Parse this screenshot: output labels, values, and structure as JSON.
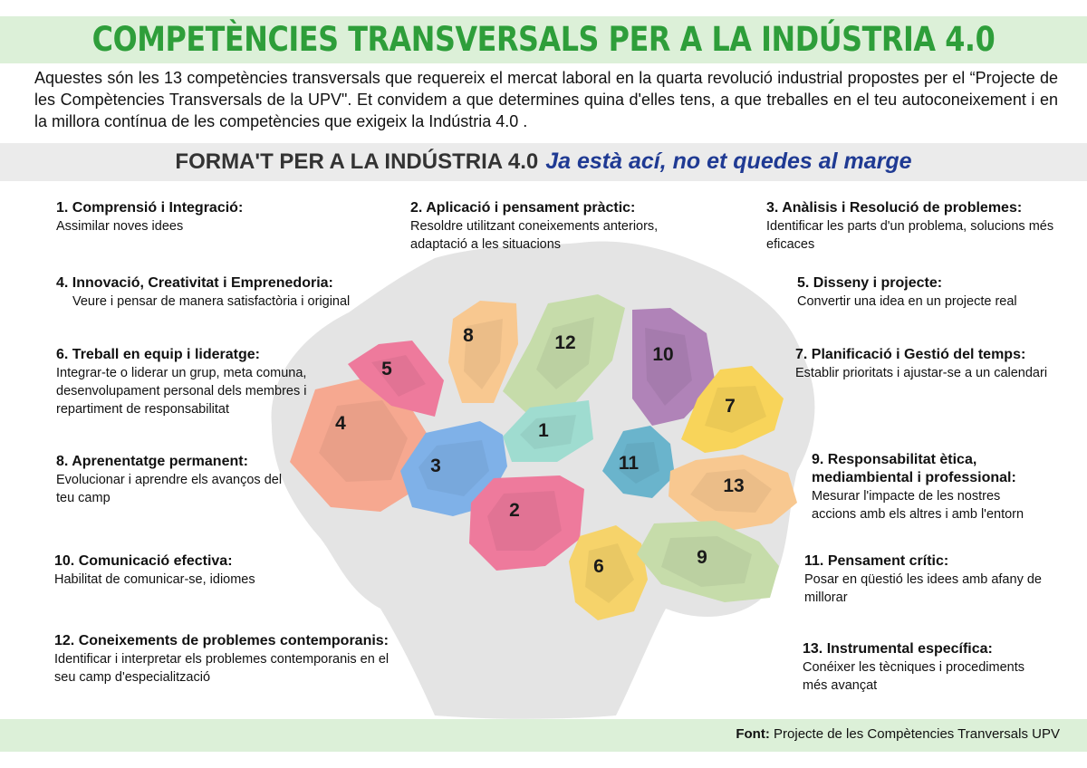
{
  "title": "COMPETÈNCIES TRANSVERSALS PER A LA INDÚSTRIA 4.0",
  "intro": "Aquestes són les 13 competències transversals que requereix el mercat laboral en la quarta revolució industrial propostes per el “Projecte de les Compètencies Transversals de la UPV\". Et convidem a que determines quina d'elles tens, a que treballes en el teu autoconeixement i en la millora contínua de les competències que exigeix la Indústria 4.0 .",
  "subtitle_main": "FORMA'T PER A LA INDÚSTRIA 4.0",
  "subtitle_accent": "Ja està ací, no et quedes al marge",
  "competencies": [
    {
      "number": "1.",
      "title": "Comprensió i Integració:",
      "description": "Assimilar noves idees"
    },
    {
      "number": "2.",
      "title": "Aplicació i pensament pràctic:",
      "description": "Resoldre utilitzant coneixements anteriors, adaptació a les situacions"
    },
    {
      "number": "3.",
      "title": "Anàlisis i Resolució de problemes:",
      "description": "Identificar les parts d'un problema, solucions més eficaces"
    },
    {
      "number": "4.",
      "title": "Innovació, Creativitat i Emprenedoria:",
      "description": "Veure i pensar de manera satisfactòria i original"
    },
    {
      "number": "5.",
      "title": "Disseny i projecte:",
      "description": "Convertir una idea en un projecte real"
    },
    {
      "number": "6.",
      "title": "Treball en equip i lideratge:",
      "description": "Integrar-te o liderar un grup, meta comuna, desenvolupament personal dels membres i repartiment de responsabilitat"
    },
    {
      "number": "7.",
      "title": "Planificació i Gestió del temps:",
      "description": "Establir prioritats i ajustar-se a un calendari"
    },
    {
      "number": "8.",
      "title": "Aprenentatge permanent:",
      "description": "Evolucionar i aprendre els avanços del teu camp"
    },
    {
      "number": "9.",
      "title": "Responsabilitat ètica, mediambiental i professional:",
      "description": "Mesurar l'impacte de les nostres accions amb els altres i amb l'entorn"
    },
    {
      "number": "10.",
      "title": "Comunicació efectiva:",
      "description": "Habilitat de comunicar-se, idiomes"
    },
    {
      "number": "11.",
      "title": "Pensament crític:",
      "description": "Posar en qüestió les idees amb afany de millorar"
    },
    {
      "number": "12.",
      "title": "Coneixements de problemes contemporanis:",
      "description": "Identificar i interpretar els problemes contemporanis en el seu camp d'especialització"
    },
    {
      "number": "13.",
      "title": "Instrumental específica:",
      "description": "Conéixer les tècniques i procediments més avançat"
    }
  ],
  "lobes": [
    {
      "label": "1",
      "color": "#9fdcd0"
    },
    {
      "label": "2",
      "color": "#ee7a9c"
    },
    {
      "label": "3",
      "color": "#7fb1e8"
    },
    {
      "label": "4",
      "color": "#f6a890"
    },
    {
      "label": "5",
      "color": "#ee7a9c"
    },
    {
      "label": "6",
      "color": "#f6d36a"
    },
    {
      "label": "7",
      "color": "#f8d45a"
    },
    {
      "label": "8",
      "color": "#f8c890"
    },
    {
      "label": "9",
      "color": "#c6dcaa"
    },
    {
      "label": "10",
      "color": "#b083b8"
    },
    {
      "label": "11",
      "color": "#6ab4cc"
    },
    {
      "label": "12",
      "color": "#c6dcaa"
    },
    {
      "label": "13",
      "color": "#f8c890"
    }
  ],
  "footer_label": "Font:",
  "footer_source": "Projecte de les Compètencies Tranversals UPV"
}
